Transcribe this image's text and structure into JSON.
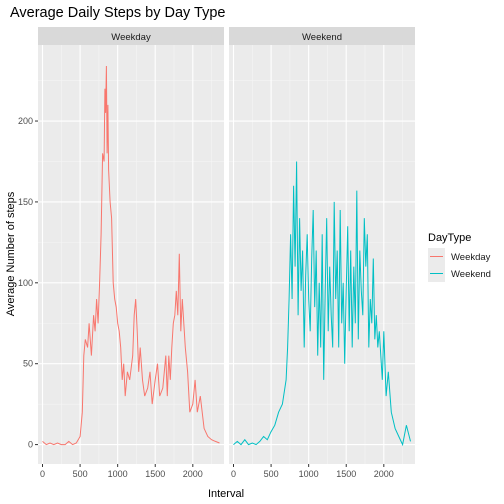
{
  "chart_data": {
    "type": "line",
    "title": "Average Daily Steps by Day Type",
    "xlabel": "Interval",
    "ylabel": "Average Number of steps",
    "facets": [
      "Weekday",
      "Weekend"
    ],
    "xlim": [
      -60,
      2415
    ],
    "ylim": [
      -12,
      247
    ],
    "xticks": [
      0,
      500,
      1000,
      1500,
      2000
    ],
    "yticks": [
      0,
      50,
      100,
      150,
      200
    ],
    "grid": true,
    "legend": {
      "title": "DayType",
      "position": "right"
    },
    "series": [
      {
        "name": "Weekday",
        "color": "#F8766D",
        "x": [
          0,
          50,
          100,
          150,
          200,
          250,
          300,
          350,
          400,
          450,
          500,
          530,
          550,
          570,
          600,
          620,
          650,
          680,
          700,
          720,
          740,
          760,
          780,
          800,
          820,
          830,
          840,
          850,
          860,
          870,
          880,
          900,
          920,
          940,
          960,
          980,
          1000,
          1020,
          1040,
          1060,
          1080,
          1100,
          1130,
          1160,
          1200,
          1220,
          1240,
          1260,
          1280,
          1300,
          1330,
          1360,
          1400,
          1430,
          1460,
          1500,
          1530,
          1560,
          1600,
          1620,
          1640,
          1660,
          1680,
          1700,
          1720,
          1740,
          1760,
          1780,
          1800,
          1820,
          1840,
          1860,
          1880,
          1900,
          1930,
          1960,
          2000,
          2030,
          2060,
          2100,
          2150,
          2200,
          2250,
          2300,
          2355
        ],
        "y": [
          2,
          0,
          1,
          0,
          1,
          0,
          0,
          2,
          0,
          1,
          5,
          20,
          55,
          65,
          60,
          75,
          55,
          80,
          70,
          90,
          75,
          100,
          130,
          180,
          175,
          220,
          205,
          234,
          180,
          210,
          170,
          150,
          140,
          100,
          90,
          85,
          75,
          70,
          60,
          40,
          50,
          30,
          45,
          40,
          55,
          80,
          90,
          70,
          45,
          60,
          40,
          30,
          35,
          45,
          25,
          40,
          50,
          30,
          35,
          45,
          55,
          30,
          55,
          40,
          60,
          75,
          80,
          95,
          80,
          118,
          70,
          90,
          75,
          60,
          45,
          20,
          25,
          40,
          20,
          30,
          10,
          5,
          3,
          2,
          1
        ]
      },
      {
        "name": "Weekend",
        "color": "#00BFC4",
        "x": [
          0,
          50,
          100,
          150,
          200,
          250,
          300,
          350,
          400,
          450,
          500,
          550,
          600,
          650,
          700,
          720,
          740,
          760,
          780,
          800,
          820,
          840,
          860,
          880,
          900,
          920,
          940,
          960,
          980,
          1000,
          1020,
          1040,
          1060,
          1080,
          1100,
          1120,
          1140,
          1160,
          1180,
          1200,
          1220,
          1240,
          1260,
          1280,
          1300,
          1320,
          1340,
          1360,
          1380,
          1400,
          1420,
          1440,
          1460,
          1480,
          1500,
          1520,
          1540,
          1560,
          1580,
          1600,
          1620,
          1640,
          1660,
          1680,
          1700,
          1720,
          1740,
          1760,
          1780,
          1800,
          1820,
          1840,
          1860,
          1880,
          1900,
          1920,
          1940,
          1960,
          1980,
          2000,
          2030,
          2060,
          2100,
          2150,
          2200,
          2250,
          2300,
          2355
        ],
        "y": [
          0,
          2,
          0,
          3,
          0,
          1,
          0,
          2,
          5,
          3,
          8,
          12,
          20,
          25,
          40,
          60,
          90,
          130,
          90,
          160,
          110,
          175,
          80,
          140,
          95,
          120,
          60,
          105,
          130,
          90,
          70,
          115,
          145,
          85,
          120,
          55,
          100,
          60,
          130,
          40,
          95,
          140,
          70,
          110,
          80,
          60,
          150,
          90,
          120,
          60,
          145,
          75,
          100,
          50,
          95,
          135,
          70,
          120,
          60,
          110,
          75,
          157,
          65,
          120,
          95,
          80,
          140,
          110,
          130,
          60,
          90,
          75,
          115,
          65,
          80,
          60,
          70,
          55,
          40,
          70,
          30,
          45,
          20,
          10,
          5,
          0,
          12,
          2
        ]
      }
    ]
  }
}
